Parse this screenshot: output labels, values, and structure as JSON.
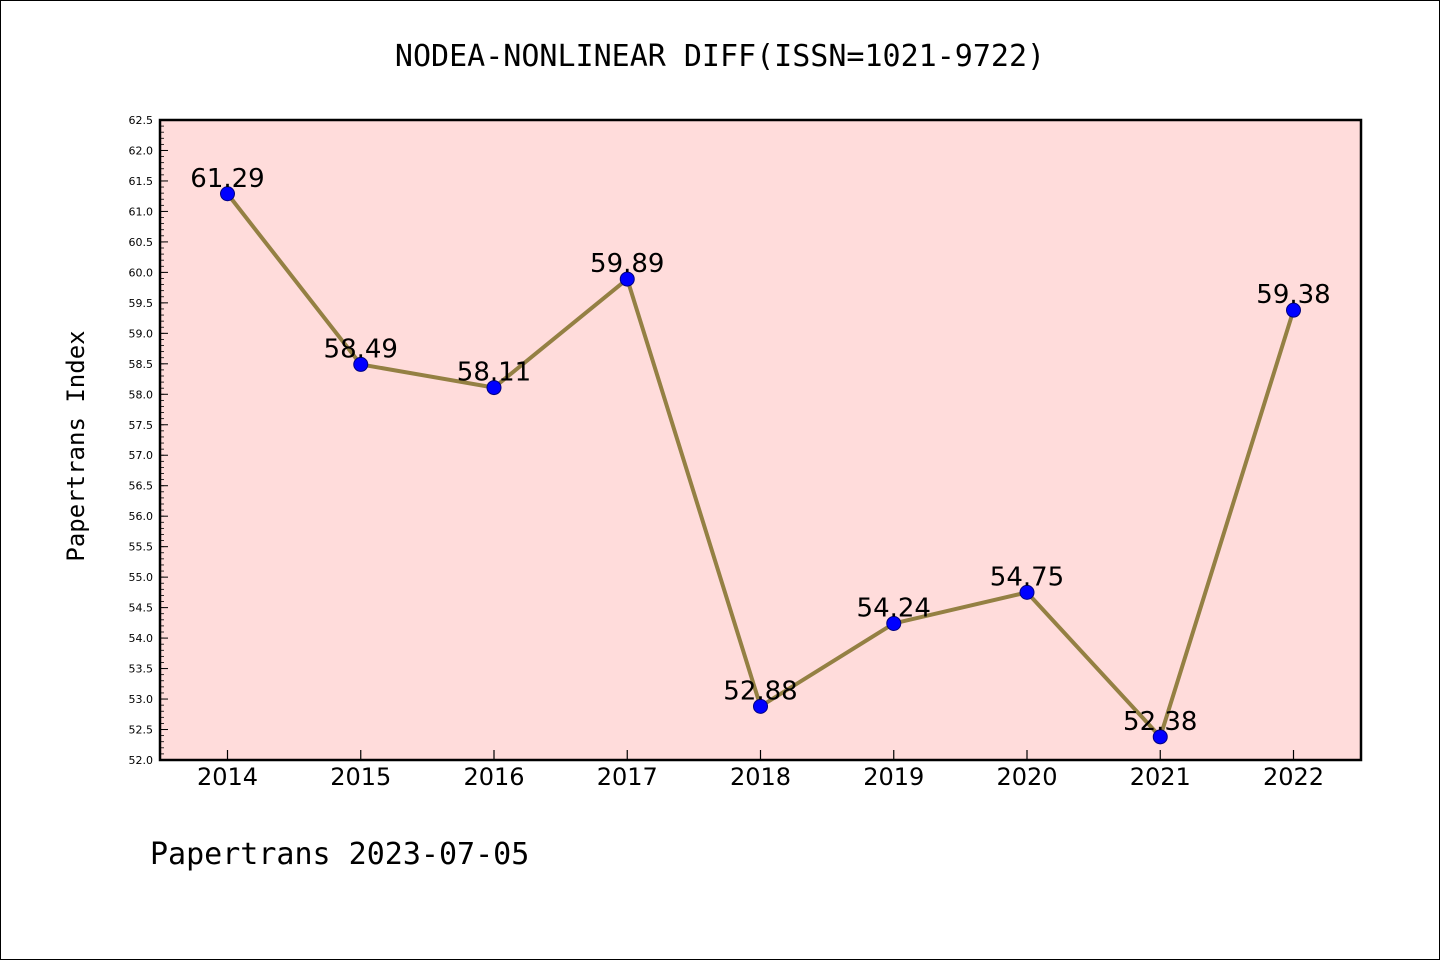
{
  "chart_data": {
    "type": "line",
    "title": "NODEA-NONLINEAR DIFF(ISSN=1021-9722)",
    "xlabel": "",
    "ylabel": "Papertrans Index",
    "categories": [
      "2014",
      "2015",
      "2016",
      "2017",
      "2018",
      "2019",
      "2020",
      "2021",
      "2022"
    ],
    "series": [
      {
        "values": [
          61.29,
          58.49,
          58.11,
          59.89,
          52.88,
          54.24,
          54.75,
          52.38,
          59.38
        ],
        "data_labels": [
          "61.29",
          "58.49",
          "58.11",
          "59.89",
          "52.88",
          "54.24",
          "54.75",
          "52.38",
          "59.38"
        ]
      }
    ],
    "ylim": [
      52.0,
      62.5
    ],
    "yticks": [
      "52.0",
      "52.5",
      "53.0",
      "53.5",
      "54.0",
      "54.5",
      "55.0",
      "55.5",
      "56.0",
      "56.5",
      "57.0",
      "57.5",
      "58.0",
      "58.5",
      "59.0",
      "59.5",
      "60.0",
      "60.5",
      "61.0",
      "61.5",
      "62.0",
      "62.5"
    ],
    "grid": false,
    "legend": "none",
    "colors": {
      "plot_background": "#ffdcdb",
      "line": "#948043",
      "marker_fill": "#0000ff",
      "marker_edge": "#000080",
      "axis": "#000000"
    }
  },
  "footer": {
    "text": "Papertrans 2023-07-05"
  }
}
